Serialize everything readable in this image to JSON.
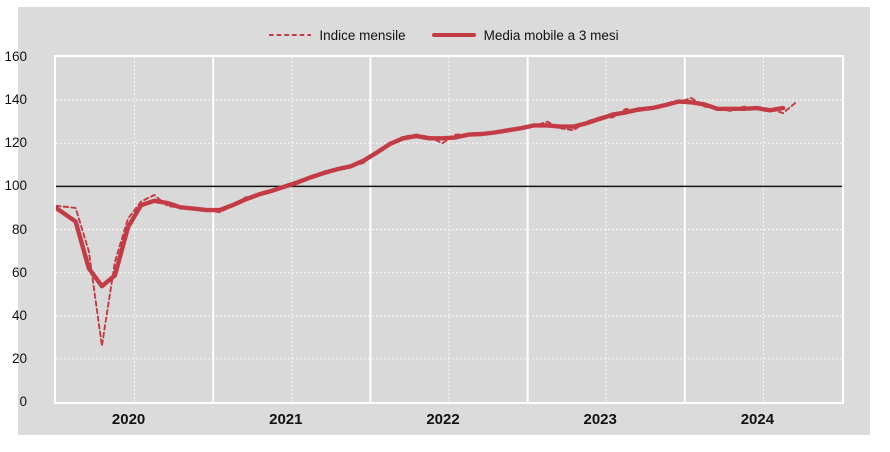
{
  "legend": {
    "items": [
      {
        "label": "Indice mensile",
        "style": "dashed"
      },
      {
        "label": "Media mobile a 3 mesi",
        "style": "solid"
      }
    ]
  },
  "colors": {
    "series_red": "#c33b44",
    "panel_bg": "#dbdbdb",
    "plot_bg": "#d9d9d9",
    "grid_white": "#ffffff",
    "baseline_black": "#141414",
    "text": "#111111"
  },
  "chart_data": {
    "type": "line",
    "title": "",
    "xlabel": "",
    "ylabel": "",
    "x_unit": "month",
    "x_start": "2020-01",
    "x_end_dashed": "2024-09",
    "x_end_solid": "2024-08",
    "ylim": [
      0,
      160
    ],
    "y_ticks": [
      0,
      20,
      40,
      60,
      80,
      100,
      120,
      140,
      160
    ],
    "y_dotted_gridlines": [
      20,
      40,
      60,
      80,
      120,
      140
    ],
    "baseline_value": 100,
    "x_year_labels": [
      "2020",
      "2021",
      "2022",
      "2023",
      "2024"
    ],
    "year_boundary_months": [
      12,
      24,
      36,
      48
    ],
    "mid_year_months": [
      6,
      18,
      30,
      42,
      54
    ],
    "grid": "on",
    "legend_position": "top-center",
    "series": [
      {
        "name": "Indice mensile",
        "style": "dashed",
        "start_month_index": 0,
        "values": [
          91,
          90,
          70,
          26,
          65,
          85,
          93,
          96,
          91,
          90,
          90,
          89,
          88,
          91,
          95,
          96,
          98,
          100,
          102,
          104,
          107,
          108,
          109,
          111,
          116,
          120,
          123,
          124,
          123,
          120,
          124,
          124,
          124,
          125,
          126,
          127,
          128,
          130,
          127,
          126,
          130,
          132,
          132,
          136,
          135,
          136,
          138,
          139,
          141,
          137,
          136,
          135,
          137,
          136,
          136,
          134,
          139
        ]
      },
      {
        "name": "Media mobile a 3 mesi",
        "style": "solid",
        "start_month_index": 0,
        "values": [
          90,
          83.7,
          62,
          53.7,
          58.7,
          81,
          91.3,
          93.3,
          92.3,
          90.3,
          89.7,
          89,
          89,
          91.3,
          94,
          96.3,
          98,
          100,
          102,
          104.3,
          106.3,
          108,
          109.3,
          112,
          115.7,
          119.7,
          122.3,
          123.3,
          122.3,
          122.3,
          122.7,
          124,
          124.3,
          125,
          126,
          127,
          128.3,
          128.3,
          127.7,
          127.7,
          129.3,
          131.3,
          133.3,
          134.3,
          135.7,
          136.3,
          137.7,
          139.3,
          139,
          138,
          136,
          136,
          136,
          136.3,
          135.3,
          136.3
        ]
      }
    ]
  }
}
